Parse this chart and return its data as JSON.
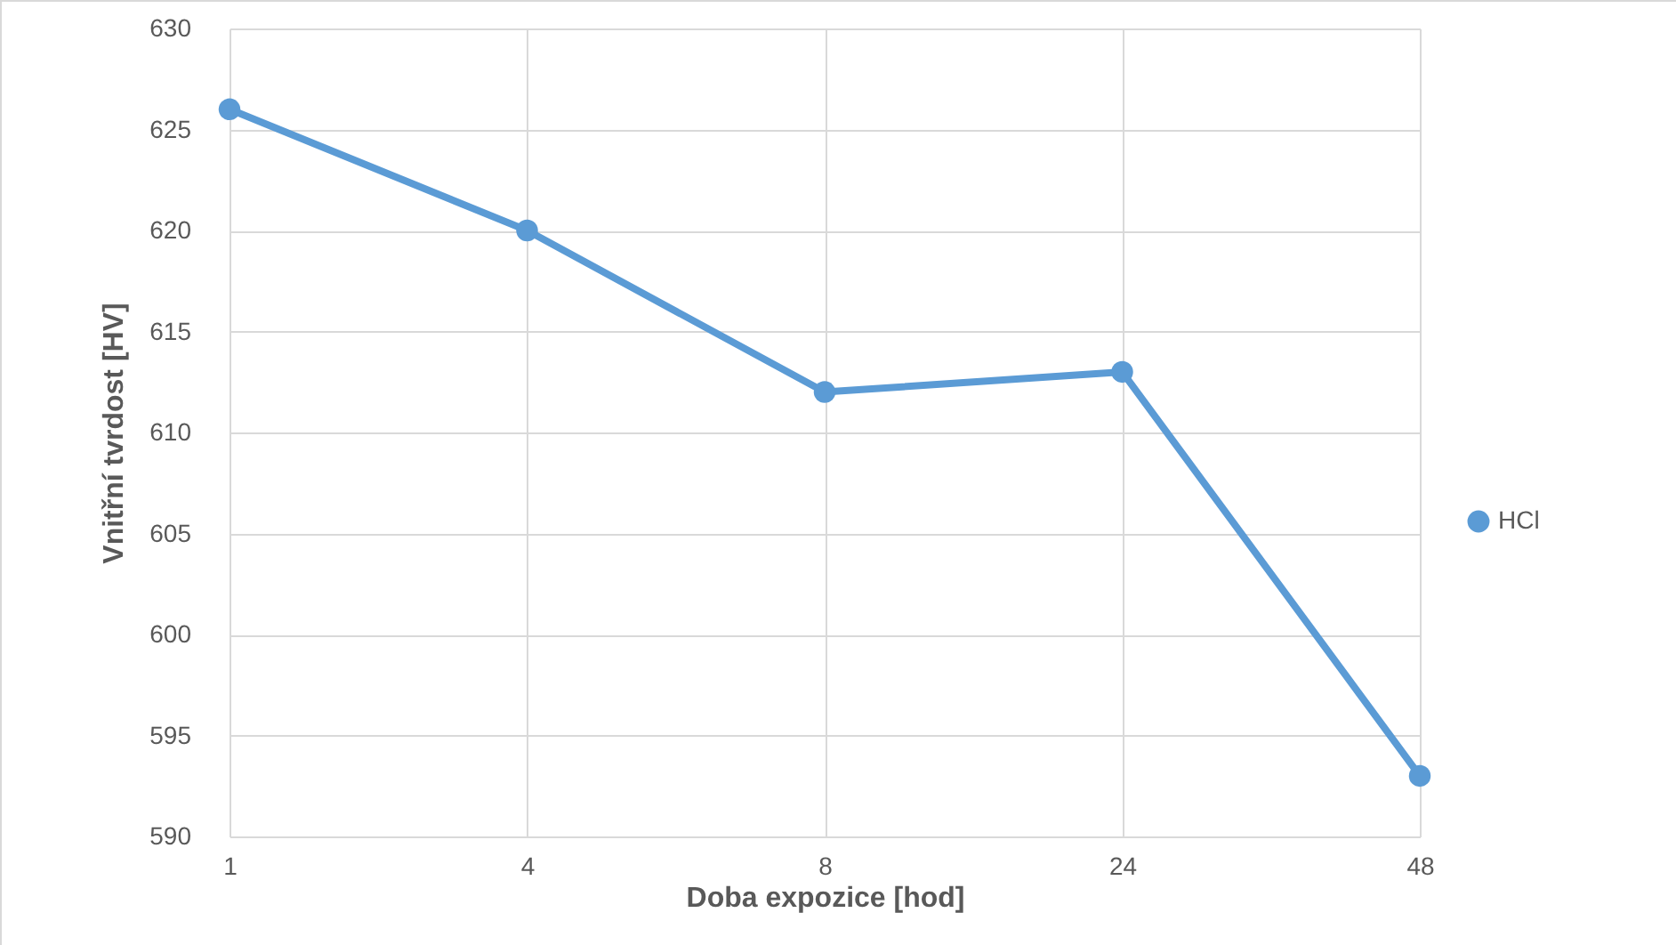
{
  "chart_data": {
    "type": "line",
    "xlabel": "Doba expozice [hod]",
    "ylabel": "Vnitřní tvrdost [HV]",
    "categories": [
      "1",
      "4",
      "8",
      "24",
      "48"
    ],
    "series": [
      {
        "name": "HCl",
        "color": "#5b9bd5",
        "values": [
          626,
          620,
          612,
          613,
          593
        ]
      }
    ],
    "ylim": [
      590,
      630
    ],
    "yticks": [
      590,
      595,
      600,
      605,
      610,
      615,
      620,
      625,
      630
    ],
    "grid": true,
    "legend": "right",
    "marker": "circle",
    "line_style": "solid"
  }
}
